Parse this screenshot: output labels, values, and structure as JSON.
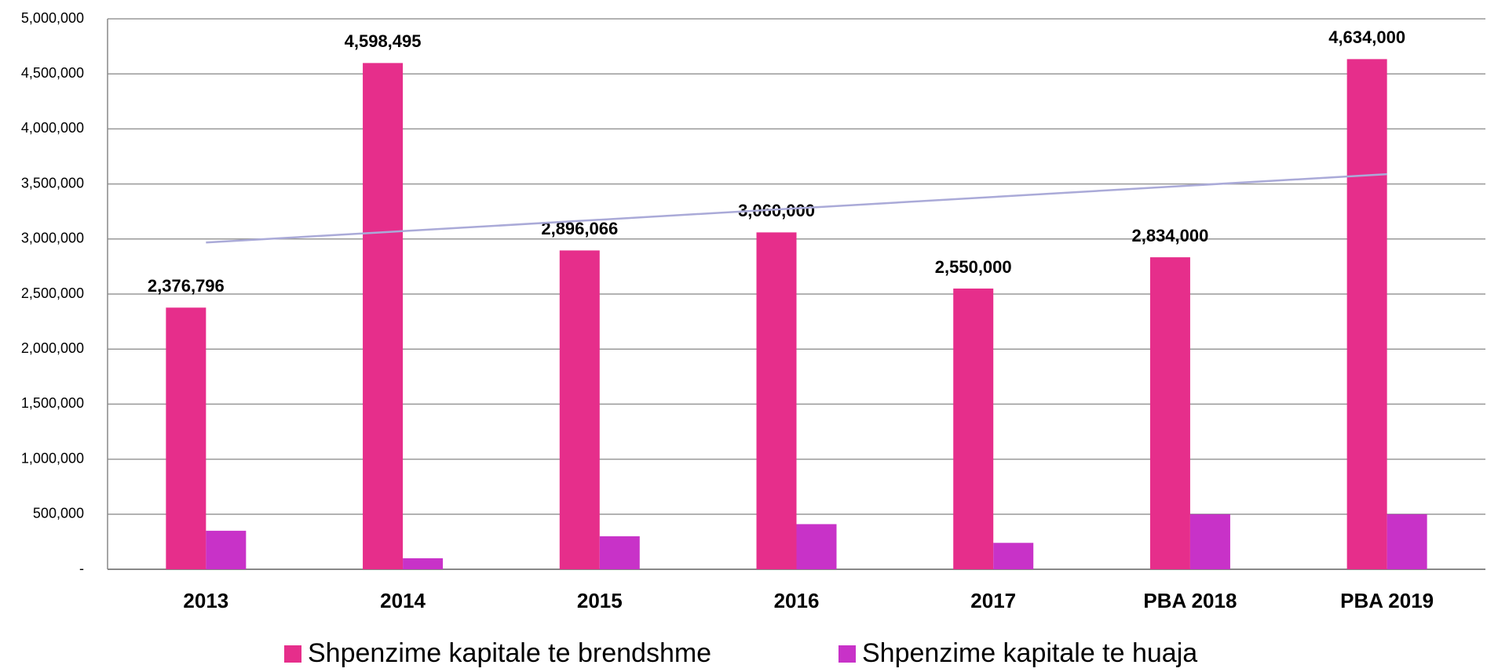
{
  "chart_data": {
    "type": "bar",
    "categories": [
      "2013",
      "2014",
      "2015",
      "2016",
      "2017",
      "PBA 2018",
      "PBA 2019"
    ],
    "series": [
      {
        "name": "Shpenzime kapitale te brendshme",
        "color": "#e62e8b",
        "values": [
          2376796,
          4598495,
          2896066,
          3060000,
          2550000,
          2834000,
          4634000
        ],
        "value_labels": [
          "2,376,796",
          "4,598,495",
          "2,896,066",
          "3,060,000",
          "2,550,000",
          "2,834,000",
          "4,634,000"
        ]
      },
      {
        "name": "Shpenzime kapitale te huaja",
        "color": "#c832c8",
        "values": [
          350000,
          100000,
          300000,
          410000,
          240000,
          500000,
          500000
        ]
      }
    ],
    "trendline_color": "#aaaad8",
    "ylim": [
      0,
      5000000
    ],
    "yticks": [
      {
        "value": 0,
        "label": "-"
      },
      {
        "value": 500000,
        "label": "500,000"
      },
      {
        "value": 1000000,
        "label": "1,000,000"
      },
      {
        "value": 1500000,
        "label": "1,500,000"
      },
      {
        "value": 2000000,
        "label": "2,000,000"
      },
      {
        "value": 2500000,
        "label": "2,500,000"
      },
      {
        "value": 3000000,
        "label": "3,000,000"
      },
      {
        "value": 3500000,
        "label": "3,500,000"
      },
      {
        "value": 4000000,
        "label": "4,000,000"
      },
      {
        "value": 4500000,
        "label": "4,500,000"
      },
      {
        "value": 5000000,
        "label": "5,000,000"
      }
    ],
    "grid": true
  }
}
